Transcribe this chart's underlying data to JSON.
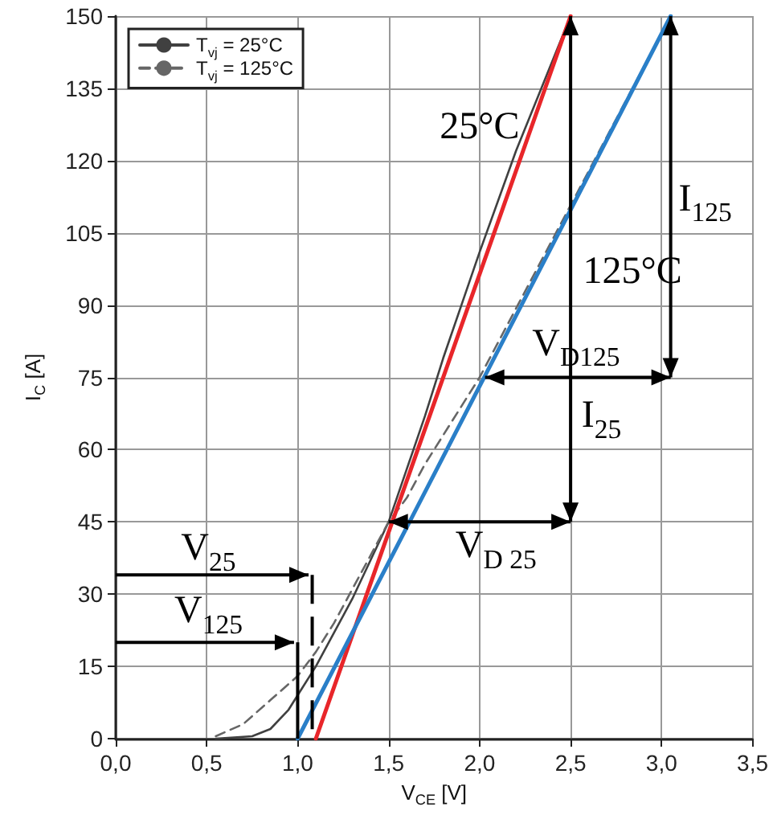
{
  "chart_data": {
    "type": "line",
    "xlabel": "V$_{CE}$ [V]",
    "ylabel": "I$_{C}$ [A]",
    "xlim": [
      0,
      3.5
    ],
    "xticks": [
      {
        "value": 0,
        "label": "0,0"
      },
      {
        "value": 0.5,
        "label": "0,5"
      },
      {
        "value": 1,
        "label": "1,0"
      },
      {
        "value": 1.5,
        "label": "1,5"
      },
      {
        "value": 2,
        "label": "2,0"
      },
      {
        "value": 2.5,
        "label": "2,5"
      },
      {
        "value": 3,
        "label": "3,0"
      },
      {
        "value": 3.5,
        "label": "3,5"
      }
    ],
    "ylim": [
      0,
      150
    ],
    "yticks": [
      0,
      15,
      30,
      45,
      60,
      75,
      90,
      105,
      120,
      135,
      150
    ],
    "grid": true,
    "legend": "top left",
    "marker": "none",
    "series": [
      {
        "name": "T$_{vj}$ = 25°C",
        "color": "#404040",
        "line_style": "solid",
        "x": [
          0.55,
          0.75,
          0.85,
          0.95,
          1.0,
          1.1,
          1.2,
          1.3,
          1.4,
          1.5,
          1.6,
          1.7,
          1.8,
          1.9,
          2.0,
          2.2,
          2.5
        ],
        "values": [
          0,
          0.5,
          2,
          6,
          9,
          15,
          22,
          29,
          37,
          45,
          56,
          67,
          79,
          90,
          101,
          122,
          150
        ]
      },
      {
        "name": "T$_{vj}$ = 125°C",
        "color": "#666666",
        "line_style": "dashed",
        "x": [
          0.55,
          0.7,
          0.85,
          1.0,
          1.1,
          1.2,
          1.3,
          1.4,
          1.5,
          1.6,
          1.7,
          2.0,
          2.5,
          3.05
        ],
        "values": [
          0.5,
          3,
          8,
          13,
          18,
          24,
          31,
          38,
          45,
          50,
          57,
          75,
          null,
          150
        ]
      },
      {
        "color": "#e8262a",
        "line_style": "solid",
        "x": [
          1.1,
          2.5
        ],
        "values": [
          0,
          150
        ]
      },
      {
        "color": "#2a7fc8",
        "line_style": "solid",
        "x": [
          1.0,
          3.05
        ],
        "values": [
          0,
          150
        ]
      }
    ],
    "annotations": [
      "25°C",
      "125°C",
      "I$_{125}$",
      "I$_{25}$",
      "V$_{D125}$",
      "V$_{D 25}$",
      "V$_{25}$",
      "V$_{125}$"
    ]
  }
}
